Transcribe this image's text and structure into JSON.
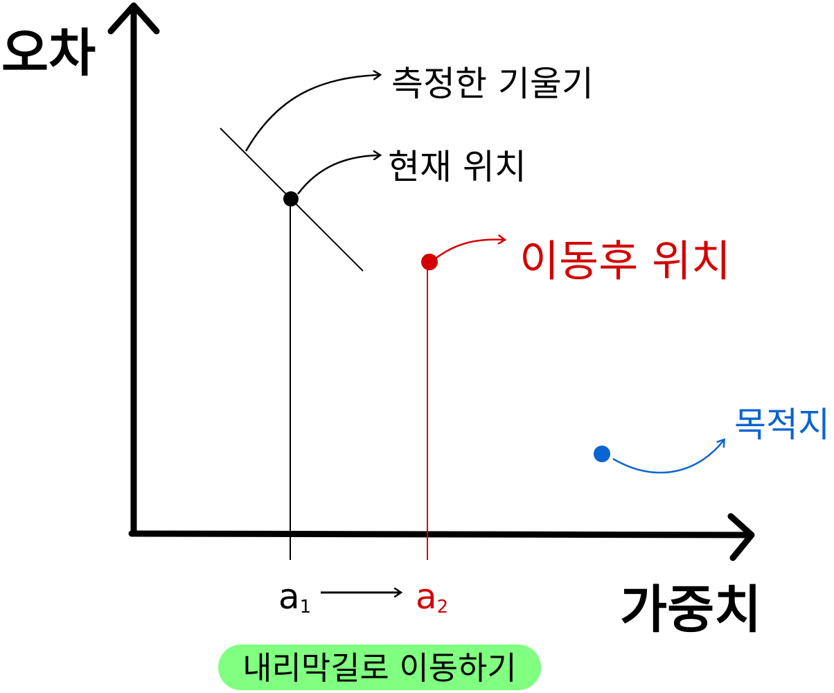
{
  "axes": {
    "y_label": "오차",
    "x_label": "가중치"
  },
  "labels": {
    "measured_slope": "측정한 기울기",
    "current_position": "현재 위치",
    "after_move_position": "이동후 위치",
    "destination": "목적지"
  },
  "ticks": {
    "a1": "a",
    "a1_sub": "1",
    "a2": "a",
    "a2_sub": "2"
  },
  "caption": "내리막길로 이동하기",
  "colors": {
    "black": "#000000",
    "red": "#d40000",
    "blue": "#0a64d2",
    "pill": "#80ff80"
  }
}
